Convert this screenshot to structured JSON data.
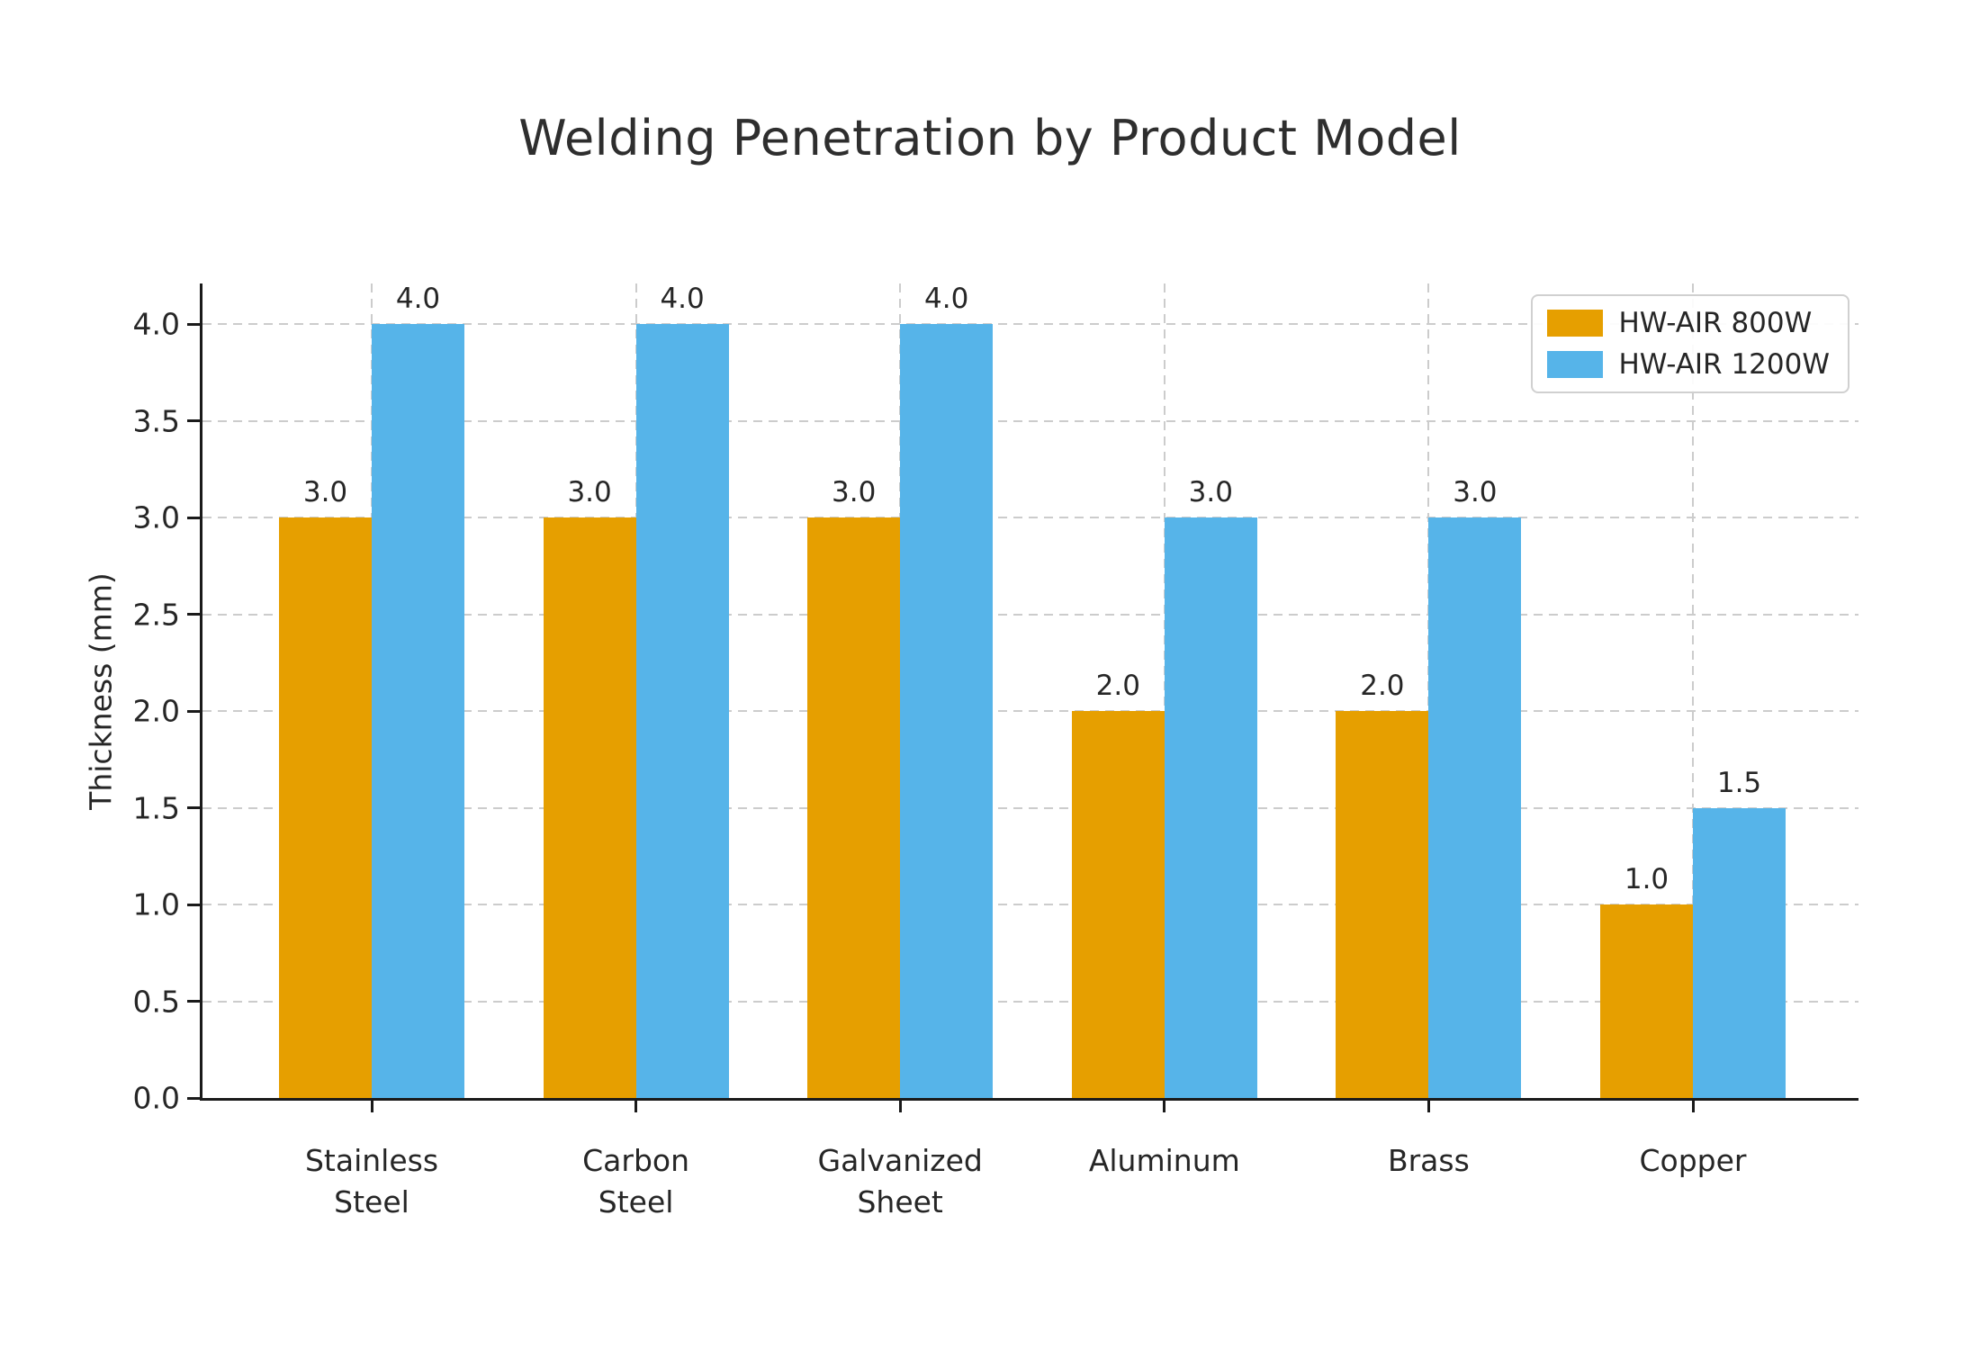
{
  "chart_data": {
    "type": "bar",
    "title": "Welding Penetration by Product Model",
    "ylabel": "Thickness (mm)",
    "xlabel": "",
    "categories": [
      "Stainless\nSteel",
      "Carbon\nSteel",
      "Galvanized\nSheet",
      "Aluminum",
      "Brass",
      "Copper"
    ],
    "series": [
      {
        "name": "HW-AIR 800W",
        "color": "#E69F00",
        "values": [
          3.0,
          3.0,
          3.0,
          2.0,
          2.0,
          1.0
        ]
      },
      {
        "name": "HW-AIR 1200W",
        "color": "#56B4E9",
        "values": [
          4.0,
          4.0,
          4.0,
          3.0,
          3.0,
          1.5
        ]
      }
    ],
    "ylim": [
      0,
      4.2
    ],
    "yticks": [
      0.0,
      0.5,
      1.0,
      1.5,
      2.0,
      2.5,
      3.0,
      3.5,
      4.0
    ],
    "grid": true,
    "grid_style": "dashed",
    "legend_position": "upper right",
    "value_labels": true,
    "style": {
      "grid_color": "#cccccc",
      "axis_color": "#1a1a1a",
      "text_color": "#262626",
      "title_color": "#2e2e2e",
      "legend_border_color": "#d0d0d0"
    }
  }
}
